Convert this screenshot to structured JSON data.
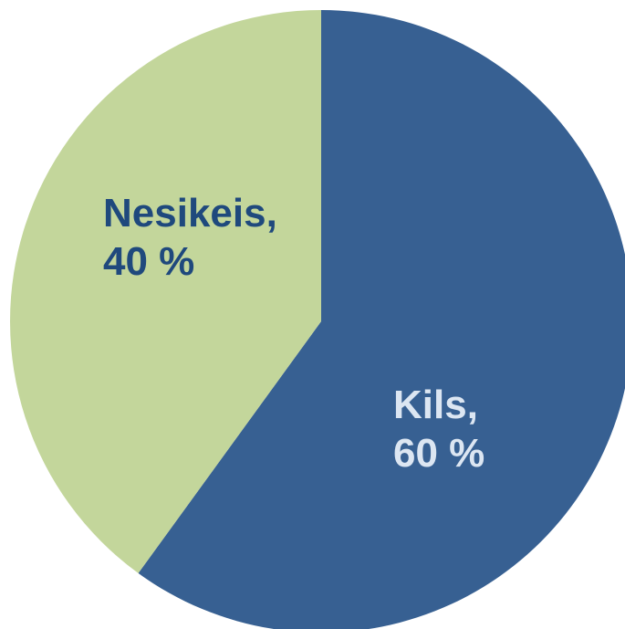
{
  "chart_data": {
    "type": "pie",
    "title": "",
    "slices": [
      {
        "label": "Kils",
        "value": 60,
        "display_line1": "Kils,",
        "display_line2": "60 %",
        "color": "#376092",
        "label_color": "#dce6f2"
      },
      {
        "label": "Nesikeis",
        "value": 40,
        "display_line1": "Nesikeis,",
        "display_line2": "40 %",
        "color": "#c3d69b",
        "label_color": "#1f497d"
      }
    ]
  }
}
